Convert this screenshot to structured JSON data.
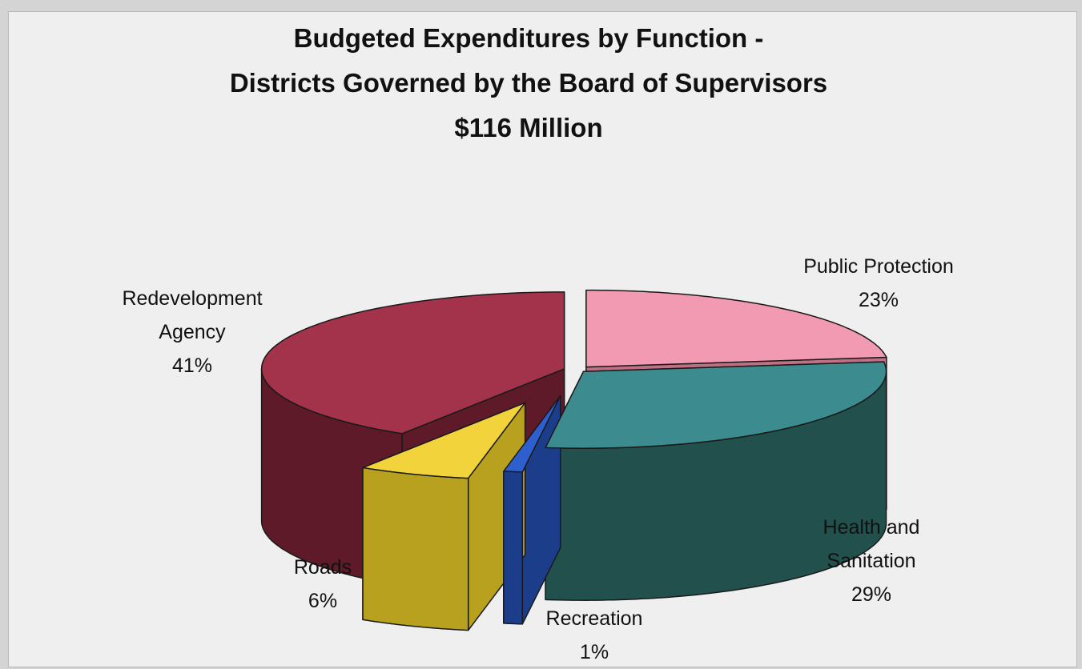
{
  "chart_data": {
    "type": "pie",
    "title_lines": [
      "Budgeted Expenditures by Function -",
      "Districts Governed by the Board of Supervisors",
      "$116 Million"
    ],
    "slices": [
      {
        "name_lines": [
          "Public Protection"
        ],
        "value": 23,
        "value_label": "23%",
        "color": "#f29ab2",
        "side_color": "#c07085"
      },
      {
        "name_lines": [
          "Health and",
          "Sanitation"
        ],
        "value": 29,
        "value_label": "29%",
        "color": "#3c8b8f",
        "side_color": "#22504c"
      },
      {
        "name_lines": [
          "Recreation"
        ],
        "value": 1,
        "value_label": "1%",
        "color": "#2d5fce",
        "side_color": "#1c3d8a"
      },
      {
        "name_lines": [
          "Roads"
        ],
        "value": 6,
        "value_label": "6%",
        "color": "#f2d33b",
        "side_color": "#b8a11e"
      },
      {
        "name_lines": [
          "Redevelopment",
          "Agency"
        ],
        "value": 41,
        "value_label": "41%",
        "color": "#a3334a",
        "side_color": "#5e1a28"
      }
    ],
    "three_d": true,
    "exploded": true,
    "legend": "none"
  }
}
